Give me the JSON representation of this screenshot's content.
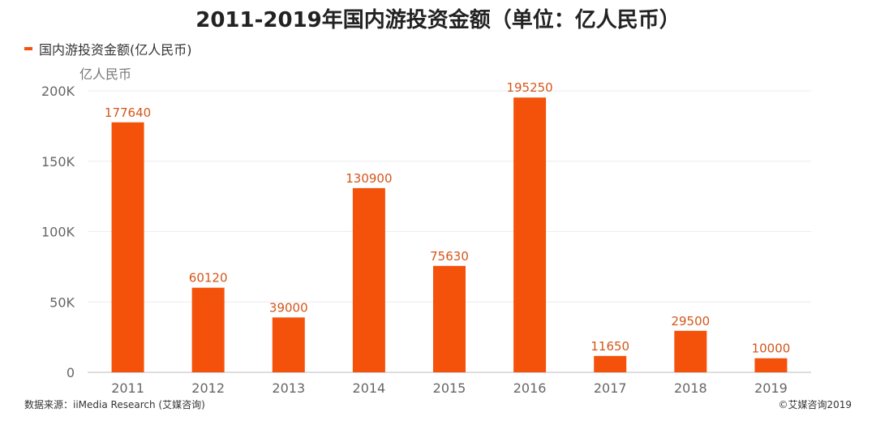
{
  "chart_data": {
    "type": "bar",
    "title": "2011-2019年国内游投资金额（单位：亿人民币）",
    "ylabel": "亿人民币",
    "categories": [
      "2011",
      "2012",
      "2013",
      "2014",
      "2015",
      "2016",
      "2017",
      "2018",
      "2019"
    ],
    "series": [
      {
        "name": "国内游投资金额(亿人民币)",
        "values": [
          177640,
          60120,
          39000,
          130900,
          75630,
          195250,
          11650,
          29500,
          10000
        ],
        "color": "#f4520a"
      }
    ],
    "ylim": [
      0,
      200000
    ],
    "yticks": [
      0,
      50000,
      100000,
      150000,
      200000
    ],
    "ytick_labels": [
      "0",
      "50K",
      "100K",
      "150K",
      "200K"
    ],
    "data_labels": [
      "177640",
      "60120",
      "39000",
      "130900",
      "75630",
      "195250",
      "11650",
      "29500",
      "10000"
    ],
    "grid": "horizontal",
    "legend_position": "top-left"
  },
  "footer": {
    "source": "数据来源：iiMedia Research (艾媒咨询)",
    "copyright": "©艾媒咨询2019"
  }
}
